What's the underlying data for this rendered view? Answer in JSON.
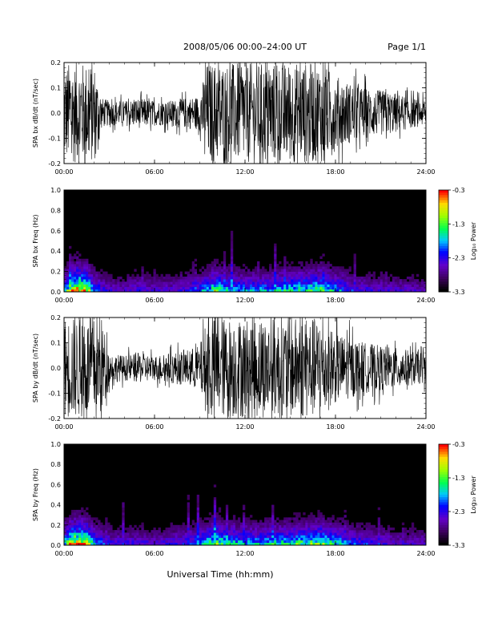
{
  "header": {
    "title": "2008/05/06  00:00–24:00 UT",
    "page": "Page 1/1"
  },
  "footer": {
    "xlabel": "Universal Time (hh:mm)"
  },
  "colors": {
    "trace": "#000000",
    "spectrogram_background": "#000000"
  },
  "chart_data": [
    {
      "type": "line",
      "ylabel": "SPA bx dB/dt (nT/sec)",
      "xlim": [
        0,
        24
      ],
      "ylim": [
        -0.2,
        0.2
      ],
      "x_ticks": [
        "00:00",
        "06:00",
        "12:00",
        "18:00",
        "24:00"
      ],
      "y_ticks": [
        "-0.2",
        "-0.1",
        "0.0",
        "0.1",
        "0.2"
      ],
      "envelope": {
        "x": [
          0,
          0.5,
          1.0,
          1.5,
          2.0,
          2.5,
          3.0,
          4.0,
          5.0,
          6.0,
          7.0,
          8.0,
          9.0,
          9.5,
          10.0,
          11.0,
          12.0,
          13.0,
          14.0,
          15.0,
          16.0,
          17.0,
          18.0,
          19.0,
          20.0,
          21.0,
          22.0,
          23.0,
          24.0
        ],
        "amplitude": [
          0.2,
          0.2,
          0.2,
          0.2,
          0.2,
          0.06,
          0.05,
          0.05,
          0.06,
          0.05,
          0.05,
          0.06,
          0.07,
          0.2,
          0.2,
          0.2,
          0.2,
          0.2,
          0.2,
          0.2,
          0.2,
          0.2,
          0.15,
          0.12,
          0.1,
          0.09,
          0.08,
          0.06,
          0.05
        ]
      }
    },
    {
      "type": "heatmap",
      "ylabel": "SPA bx Freq (Hz)",
      "xlim": [
        0,
        24
      ],
      "ylim": [
        0.0,
        1.0
      ],
      "x_ticks": [
        "00:00",
        "06:00",
        "12:00",
        "18:00",
        "24:00"
      ],
      "y_ticks": [
        "0.0",
        "0.2",
        "0.4",
        "0.6",
        "0.8",
        "1.0"
      ],
      "colorbar_label": "Log₁₀ Power",
      "colorbar_ticks": [
        "-0.3",
        "-1.3",
        "-2.3",
        "-3.3"
      ],
      "colorbar_range": [
        -3.3,
        -0.3
      ],
      "activity": {
        "x": [
          0,
          0.5,
          1.0,
          1.5,
          2.0,
          3.0,
          4.0,
          5.0,
          6.0,
          7.0,
          8.0,
          9.0,
          10.0,
          11.0,
          12.0,
          13.0,
          14.0,
          15.0,
          16.0,
          17.0,
          18.0,
          19.0,
          20.0,
          21.0,
          22.0,
          23.0,
          24.0
        ],
        "low_freq_level": [
          0.5,
          0.9,
          1.0,
          0.9,
          0.5,
          0.3,
          0.3,
          0.35,
          0.3,
          0.3,
          0.35,
          0.45,
          0.7,
          0.55,
          0.5,
          0.5,
          0.55,
          0.6,
          0.65,
          0.7,
          0.55,
          0.4,
          0.35,
          0.3,
          0.3,
          0.3,
          0.25
        ]
      }
    },
    {
      "type": "line",
      "ylabel": "SPA by dB/dt (nT/sec)",
      "xlim": [
        0,
        24
      ],
      "ylim": [
        -0.2,
        0.2
      ],
      "x_ticks": [
        "00:00",
        "06:00",
        "12:00",
        "18:00",
        "24:00"
      ],
      "y_ticks": [
        "-0.2",
        "-0.1",
        "0.0",
        "0.1",
        "0.2"
      ],
      "envelope": {
        "x": [
          0,
          0.5,
          1.0,
          1.5,
          2.0,
          2.5,
          3.0,
          4.0,
          5.0,
          6.0,
          7.0,
          8.0,
          9.0,
          9.5,
          10.0,
          11.0,
          12.0,
          13.0,
          14.0,
          15.0,
          16.0,
          17.0,
          18.0,
          19.0,
          20.0,
          21.0,
          22.0,
          23.0,
          24.0
        ],
        "amplitude": [
          0.2,
          0.2,
          0.2,
          0.2,
          0.2,
          0.2,
          0.06,
          0.05,
          0.06,
          0.05,
          0.06,
          0.07,
          0.09,
          0.2,
          0.2,
          0.2,
          0.2,
          0.2,
          0.2,
          0.2,
          0.2,
          0.2,
          0.14,
          0.12,
          0.1,
          0.09,
          0.08,
          0.07,
          0.06
        ]
      }
    },
    {
      "type": "heatmap",
      "ylabel": "SPA by Freq (Hz)",
      "xlim": [
        0,
        24
      ],
      "ylim": [
        0.0,
        1.0
      ],
      "x_ticks": [
        "00:00",
        "06:00",
        "12:00",
        "18:00",
        "24:00"
      ],
      "y_ticks": [
        "0.0",
        "0.2",
        "0.4",
        "0.6",
        "0.8",
        "1.0"
      ],
      "colorbar_label": "Log₁₀ Power",
      "colorbar_ticks": [
        "-0.3",
        "-1.3",
        "-2.3",
        "-3.3"
      ],
      "colorbar_range": [
        -3.3,
        -0.3
      ],
      "activity": {
        "x": [
          0,
          0.5,
          1.0,
          1.5,
          2.0,
          3.0,
          4.0,
          5.0,
          6.0,
          7.0,
          8.0,
          9.0,
          10.0,
          11.0,
          12.0,
          13.0,
          14.0,
          15.0,
          16.0,
          17.0,
          18.0,
          19.0,
          20.0,
          21.0,
          22.0,
          23.0,
          24.0
        ],
        "low_freq_level": [
          0.55,
          0.95,
          1.0,
          0.9,
          0.55,
          0.35,
          0.35,
          0.35,
          0.3,
          0.35,
          0.4,
          0.5,
          0.75,
          0.6,
          0.55,
          0.55,
          0.6,
          0.65,
          0.7,
          0.75,
          0.6,
          0.45,
          0.4,
          0.35,
          0.3,
          0.3,
          0.3
        ]
      }
    }
  ]
}
